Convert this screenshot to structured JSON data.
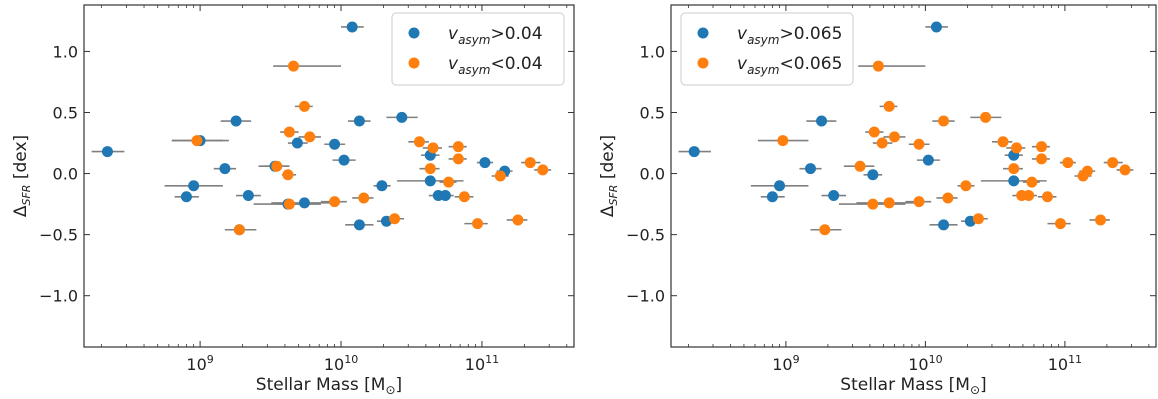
{
  "colors": {
    "blue": "#1f77b4",
    "orange": "#ff7f0e",
    "errorbar": "#808080",
    "axes": "#333333"
  },
  "chart_data": [
    {
      "type": "scatter",
      "x_scale": "log",
      "xlabel": "Stellar Mass [M",
      "xlabel_sym": "⊙",
      "xlabel_end": "]",
      "ylabel_prefix": "Δ",
      "ylabel_sub": "SFR",
      "ylabel_rest": " [dex]",
      "xlim": [
        150000000.0,
        450000000000.0
      ],
      "ylim": [
        -1.42,
        1.38
      ],
      "xticks": [
        {
          "v": 1000000000.0,
          "base": "10",
          "exp": "9"
        },
        {
          "v": 10000000000.0,
          "base": "10",
          "exp": "10"
        },
        {
          "v": 100000000000.0,
          "base": "10",
          "exp": "11"
        }
      ],
      "yticks": [
        1.0,
        0.5,
        0.0,
        -0.5,
        -1.0
      ],
      "ytick_labels": [
        "1.0",
        "0.5",
        "0.0",
        "−0.5",
        "−1.0"
      ],
      "legend_position": "top-right",
      "series": [
        {
          "name_base": "v",
          "name_sub": "asym",
          "name_rest": ">0.04",
          "color": "blue",
          "points": [
            {
              "x": 220000000.0,
              "y": 0.18,
              "xlo": 170000000.0,
              "xhi": 290000000.0
            },
            {
              "x": 900000000.0,
              "y": -0.1,
              "xlo": 560000000.0,
              "xhi": 1450000000.0
            },
            {
              "x": 800000000.0,
              "y": -0.19,
              "xlo": 660000000.0,
              "xhi": 980000000.0
            },
            {
              "x": 1000000000.0,
              "y": 0.27,
              "xlo": 630000000.0,
              "xhi": 1600000000.0
            },
            {
              "x": 1500000000.0,
              "y": 0.04,
              "xlo": 1250000000.0,
              "xhi": 1800000000.0
            },
            {
              "x": 1800000000.0,
              "y": 0.43,
              "xlo": 1400000000.0,
              "xhi": 2300000000.0
            },
            {
              "x": 1900000000.0,
              "y": -0.46,
              "xlo": 1500000000.0,
              "xhi": 2500000000.0
            },
            {
              "x": 2200000000.0,
              "y": -0.18,
              "xlo": 1800000000.0,
              "xhi": 2700000000.0
            },
            {
              "x": 3400000000.0,
              "y": 0.06,
              "xlo": 2600000000.0,
              "xhi": 4300000000.0
            },
            {
              "x": 4200000000.0,
              "y": -0.25,
              "xlo": 2400000000.0,
              "xhi": 7200000000.0
            },
            {
              "x": 4900000000.0,
              "y": 0.25,
              "xlo": 4200000000.0,
              "xhi": 5800000000.0
            },
            {
              "x": 5500000000.0,
              "y": -0.24,
              "xlo": 3200000000.0,
              "xhi": 9400000000.0
            },
            {
              "x": 9000000000.0,
              "y": 0.24,
              "xlo": 7600000000.0,
              "xhi": 10700000000.0
            },
            {
              "x": 10500000000.0,
              "y": 0.11,
              "xlo": 8700000000.0,
              "xhi": 12700000000.0
            },
            {
              "x": 12000000000.0,
              "y": 1.2,
              "xlo": 10000000000.0,
              "xhi": 14500000000.0
            },
            {
              "x": 13500000000.0,
              "y": 0.43,
              "xlo": 11200000000.0,
              "xhi": 16200000000.0
            },
            {
              "x": 13500000000.0,
              "y": -0.42,
              "xlo": 10700000000.0,
              "xhi": 17000000000.0
            },
            {
              "x": 19500000000.0,
              "y": -0.1,
              "xlo": 17000000000.0,
              "xhi": 22500000000.0
            },
            {
              "x": 21000000000.0,
              "y": -0.39,
              "xlo": 18000000000.0,
              "xhi": 24500000000.0
            },
            {
              "x": 27000000000.0,
              "y": 0.46,
              "xlo": 21000000000.0,
              "xhi": 35000000000.0
            },
            {
              "x": 43000000000.0,
              "y": 0.15,
              "xlo": 37000000000.0,
              "xhi": 50000000000.0
            },
            {
              "x": 43000000000.0,
              "y": -0.06,
              "xlo": 25000000000.0,
              "xhi": 74000000000.0
            },
            {
              "x": 49000000000.0,
              "y": -0.18,
              "xlo": 42000000000.0,
              "xhi": 57000000000.0
            },
            {
              "x": 55000000000.0,
              "y": -0.18,
              "xlo": 48000000000.0,
              "xhi": 63000000000.0
            },
            {
              "x": 105000000000.0,
              "y": 0.09,
              "xlo": 92000000000.0,
              "xhi": 120000000000.0
            },
            {
              "x": 145000000000.0,
              "y": 0.02,
              "xlo": 127000000000.0,
              "xhi": 165000000000.0
            }
          ]
        },
        {
          "name_base": "v",
          "name_sub": "asym",
          "name_rest": "<0.04",
          "color": "orange",
          "points": [
            {
              "x": 950000000.0,
              "y": 0.27,
              "xlo": 630000000.0,
              "xhi": 1450000000.0
            },
            {
              "x": 1900000000.0,
              "y": -0.46,
              "xlo": 1500000000.0,
              "xhi": 2500000000.0
            },
            {
              "x": 3500000000.0,
              "y": 0.06,
              "xlo": 2800000000.0,
              "xhi": 4300000000.0
            },
            {
              "x": 4200000000.0,
              "y": -0.01,
              "xlo": 3800000000.0,
              "xhi": 4800000000.0
            },
            {
              "x": 4300000000.0,
              "y": 0.34,
              "xlo": 3700000000.0,
              "xhi": 5000000000.0
            },
            {
              "x": 4600000000.0,
              "y": 0.88,
              "xlo": 3300000000.0,
              "xhi": 10000000000.0
            },
            {
              "x": 4300000000.0,
              "y": -0.25,
              "xlo": 3500000000.0,
              "xhi": 5400000000.0
            },
            {
              "x": 5500000000.0,
              "y": 0.55,
              "xlo": 4700000000.0,
              "xhi": 6300000000.0
            },
            {
              "x": 6000000000.0,
              "y": 0.3,
              "xlo": 5000000000.0,
              "xhi": 7200000000.0
            },
            {
              "x": 9000000000.0,
              "y": -0.23,
              "xlo": 7200000000.0,
              "xhi": 11000000000.0
            },
            {
              "x": 14500000000.0,
              "y": -0.2,
              "xlo": 12000000000.0,
              "xhi": 17000000000.0
            },
            {
              "x": 24000000000.0,
              "y": -0.37,
              "xlo": 20000000000.0,
              "xhi": 28000000000.0
            },
            {
              "x": 36000000000.0,
              "y": 0.26,
              "xlo": 30000000000.0,
              "xhi": 42000000000.0
            },
            {
              "x": 43000000000.0,
              "y": 0.04,
              "xlo": 36000000000.0,
              "xhi": 50000000000.0
            },
            {
              "x": 45000000000.0,
              "y": 0.21,
              "xlo": 38000000000.0,
              "xhi": 52000000000.0
            },
            {
              "x": 58000000000.0,
              "y": -0.07,
              "xlo": 50000000000.0,
              "xhi": 66000000000.0
            },
            {
              "x": 68000000000.0,
              "y": 0.22,
              "xlo": 58000000000.0,
              "xhi": 78000000000.0
            },
            {
              "x": 68000000000.0,
              "y": 0.12,
              "xlo": 58000000000.0,
              "xhi": 78000000000.0
            },
            {
              "x": 75000000000.0,
              "y": -0.19,
              "xlo": 64000000000.0,
              "xhi": 87000000000.0
            },
            {
              "x": 93000000000.0,
              "y": -0.41,
              "xlo": 75000000000.0,
              "xhi": 110000000000.0
            },
            {
              "x": 135000000000.0,
              "y": -0.02,
              "xlo": 117000000000.0,
              "xhi": 155000000000.0
            },
            {
              "x": 180000000000.0,
              "y": -0.38,
              "xlo": 150000000000.0,
              "xhi": 210000000000.0
            },
            {
              "x": 220000000000.0,
              "y": 0.09,
              "xlo": 190000000000.0,
              "xhi": 260000000000.0
            },
            {
              "x": 270000000000.0,
              "y": 0.03,
              "xlo": 235000000000.0,
              "xhi": 310000000000.0
            }
          ]
        }
      ]
    },
    {
      "type": "scatter",
      "x_scale": "log",
      "xlabel": "Stellar Mass [M",
      "xlabel_sym": "⊙",
      "xlabel_end": "]",
      "ylabel_prefix": "Δ",
      "ylabel_sub": "SFR",
      "ylabel_rest": " [dex]",
      "xlim": [
        150000000.0,
        450000000000.0
      ],
      "ylim": [
        -1.42,
        1.38
      ],
      "xticks": [
        {
          "v": 1000000000.0,
          "base": "10",
          "exp": "9"
        },
        {
          "v": 10000000000.0,
          "base": "10",
          "exp": "10"
        },
        {
          "v": 100000000000.0,
          "base": "10",
          "exp": "11"
        }
      ],
      "yticks": [
        1.0,
        0.5,
        0.0,
        -0.5,
        -1.0
      ],
      "ytick_labels": [
        "1.0",
        "0.5",
        "0.0",
        "−0.5",
        "−1.0"
      ],
      "legend_position": "top-left",
      "series": [
        {
          "name_base": "v",
          "name_sub": "asym",
          "name_rest": ">0.065",
          "color": "blue",
          "points": [
            {
              "x": 220000000.0,
              "y": 0.18,
              "xlo": 170000000.0,
              "xhi": 290000000.0
            },
            {
              "x": 900000000.0,
              "y": -0.1,
              "xlo": 560000000.0,
              "xhi": 1450000000.0
            },
            {
              "x": 800000000.0,
              "y": -0.19,
              "xlo": 660000000.0,
              "xhi": 980000000.0
            },
            {
              "x": 1500000000.0,
              "y": 0.04,
              "xlo": 1250000000.0,
              "xhi": 1800000000.0
            },
            {
              "x": 1800000000.0,
              "y": 0.43,
              "xlo": 1400000000.0,
              "xhi": 2300000000.0
            },
            {
              "x": 2200000000.0,
              "y": -0.18,
              "xlo": 1800000000.0,
              "xhi": 2700000000.0
            },
            {
              "x": 4200000000.0,
              "y": -0.01,
              "xlo": 3600000000.0,
              "xhi": 4900000000.0
            },
            {
              "x": 10500000000.0,
              "y": 0.11,
              "xlo": 8700000000.0,
              "xhi": 12700000000.0
            },
            {
              "x": 12000000000.0,
              "y": 1.2,
              "xlo": 10000000000.0,
              "xhi": 14500000000.0
            },
            {
              "x": 13500000000.0,
              "y": -0.42,
              "xlo": 10700000000.0,
              "xhi": 17000000000.0
            },
            {
              "x": 21000000000.0,
              "y": -0.39,
              "xlo": 18000000000.0,
              "xhi": 24500000000.0
            },
            {
              "x": 43000000000.0,
              "y": 0.15,
              "xlo": 37000000000.0,
              "xhi": 50000000000.0
            },
            {
              "x": 43000000000.0,
              "y": -0.06,
              "xlo": 25000000000.0,
              "xhi": 74000000000.0
            }
          ]
        },
        {
          "name_base": "v",
          "name_sub": "asym",
          "name_rest": "<0.065",
          "color": "orange",
          "points": [
            {
              "x": 950000000.0,
              "y": 0.27,
              "xlo": 630000000.0,
              "xhi": 1450000000.0
            },
            {
              "x": 1900000000.0,
              "y": -0.46,
              "xlo": 1500000000.0,
              "xhi": 2500000000.0
            },
            {
              "x": 3400000000.0,
              "y": 0.06,
              "xlo": 2600000000.0,
              "xhi": 4300000000.0
            },
            {
              "x": 4200000000.0,
              "y": -0.25,
              "xlo": 2400000000.0,
              "xhi": 7200000000.0
            },
            {
              "x": 4300000000.0,
              "y": 0.34,
              "xlo": 3700000000.0,
              "xhi": 5000000000.0
            },
            {
              "x": 4600000000.0,
              "y": 0.88,
              "xlo": 3300000000.0,
              "xhi": 10000000000.0
            },
            {
              "x": 4900000000.0,
              "y": 0.25,
              "xlo": 4200000000.0,
              "xhi": 5800000000.0
            },
            {
              "x": 5500000000.0,
              "y": 0.55,
              "xlo": 4700000000.0,
              "xhi": 6300000000.0
            },
            {
              "x": 5500000000.0,
              "y": -0.24,
              "xlo": 3200000000.0,
              "xhi": 9400000000.0
            },
            {
              "x": 6000000000.0,
              "y": 0.3,
              "xlo": 5000000000.0,
              "xhi": 7200000000.0
            },
            {
              "x": 9000000000.0,
              "y": -0.23,
              "xlo": 7200000000.0,
              "xhi": 11000000000.0
            },
            {
              "x": 9000000000.0,
              "y": 0.24,
              "xlo": 7600000000.0,
              "xhi": 10700000000.0
            },
            {
              "x": 13500000000.0,
              "y": 0.43,
              "xlo": 11200000000.0,
              "xhi": 16200000000.0
            },
            {
              "x": 14500000000.0,
              "y": -0.2,
              "xlo": 12000000000.0,
              "xhi": 17000000000.0
            },
            {
              "x": 19500000000.0,
              "y": -0.1,
              "xlo": 17000000000.0,
              "xhi": 22500000000.0
            },
            {
              "x": 24000000000.0,
              "y": -0.37,
              "xlo": 20000000000.0,
              "xhi": 28000000000.0
            },
            {
              "x": 27000000000.0,
              "y": 0.46,
              "xlo": 21000000000.0,
              "xhi": 35000000000.0
            },
            {
              "x": 36000000000.0,
              "y": 0.26,
              "xlo": 30000000000.0,
              "xhi": 42000000000.0
            },
            {
              "x": 43000000000.0,
              "y": 0.04,
              "xlo": 36000000000.0,
              "xhi": 50000000000.0
            },
            {
              "x": 45000000000.0,
              "y": 0.21,
              "xlo": 38000000000.0,
              "xhi": 52000000000.0
            },
            {
              "x": 49000000000.0,
              "y": -0.18,
              "xlo": 42000000000.0,
              "xhi": 57000000000.0
            },
            {
              "x": 55000000000.0,
              "y": -0.18,
              "xlo": 48000000000.0,
              "xhi": 63000000000.0
            },
            {
              "x": 58000000000.0,
              "y": -0.07,
              "xlo": 50000000000.0,
              "xhi": 66000000000.0
            },
            {
              "x": 68000000000.0,
              "y": 0.22,
              "xlo": 58000000000.0,
              "xhi": 78000000000.0
            },
            {
              "x": 68000000000.0,
              "y": 0.12,
              "xlo": 58000000000.0,
              "xhi": 78000000000.0
            },
            {
              "x": 75000000000.0,
              "y": -0.19,
              "xlo": 64000000000.0,
              "xhi": 87000000000.0
            },
            {
              "x": 93000000000.0,
              "y": -0.41,
              "xlo": 75000000000.0,
              "xhi": 110000000000.0
            },
            {
              "x": 105000000000.0,
              "y": 0.09,
              "xlo": 92000000000.0,
              "xhi": 120000000000.0
            },
            {
              "x": 135000000000.0,
              "y": -0.02,
              "xlo": 117000000000.0,
              "xhi": 155000000000.0
            },
            {
              "x": 145000000000.0,
              "y": 0.02,
              "xlo": 127000000000.0,
              "xhi": 165000000000.0
            },
            {
              "x": 180000000000.0,
              "y": -0.38,
              "xlo": 150000000000.0,
              "xhi": 210000000000.0
            },
            {
              "x": 220000000000.0,
              "y": 0.09,
              "xlo": 190000000000.0,
              "xhi": 260000000000.0
            },
            {
              "x": 270000000000.0,
              "y": 0.03,
              "xlo": 235000000000.0,
              "xhi": 310000000000.0
            }
          ]
        }
      ]
    }
  ]
}
